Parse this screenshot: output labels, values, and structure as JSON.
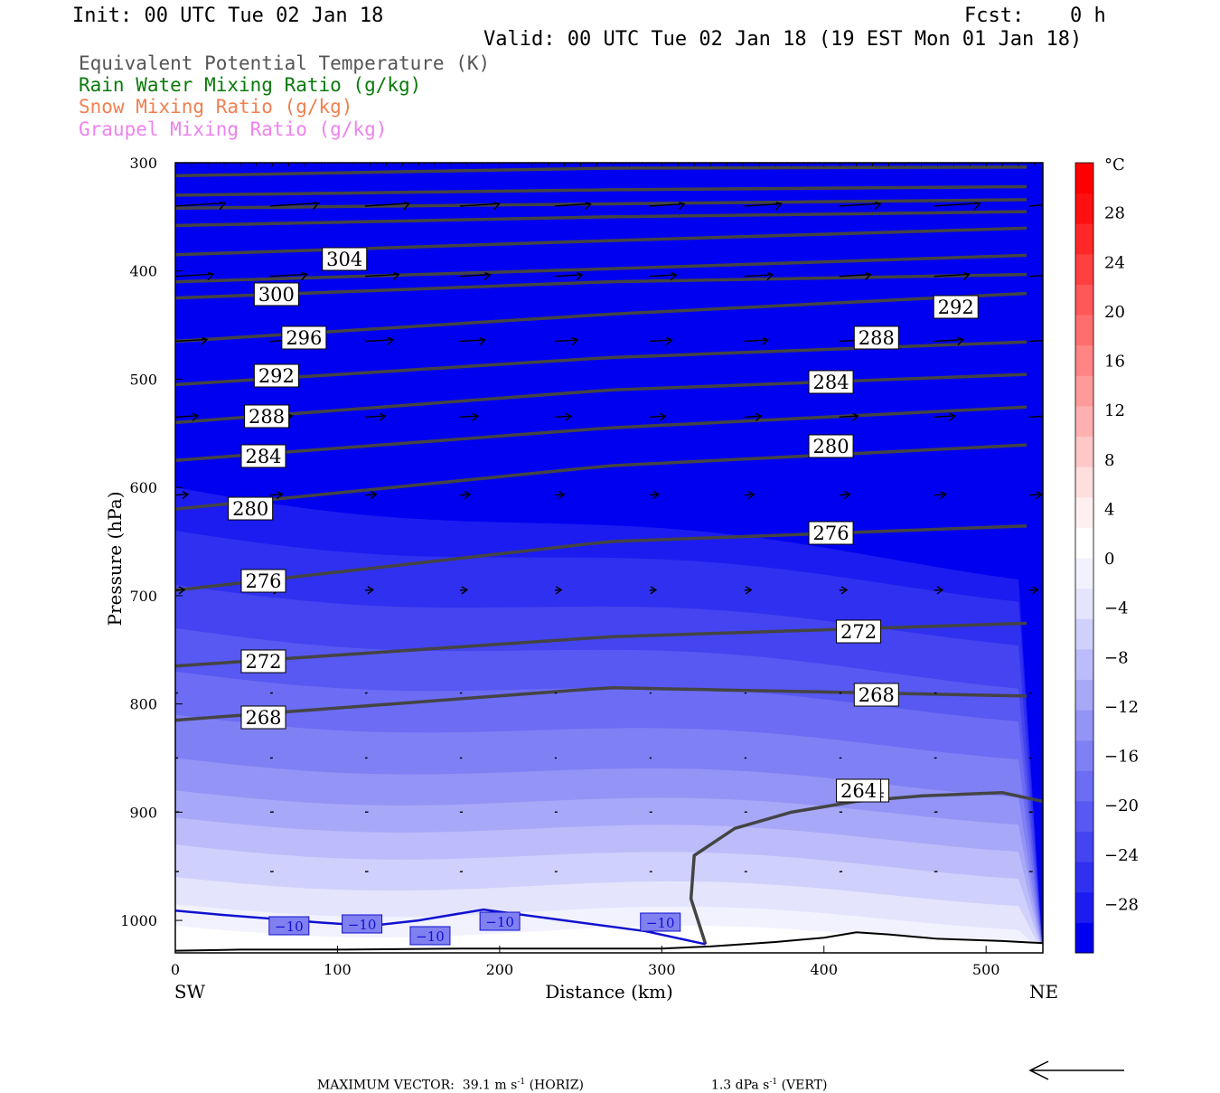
{
  "header": {
    "init": "Init: 00 UTC Tue 02 Jan 18",
    "fcst_label": "Fcst:",
    "fcst_value": "0 h",
    "valid": "Valid: 00 UTC Tue 02 Jan 18 (19 EST Mon 01 Jan 18)"
  },
  "legend": [
    {
      "label": "Equivalent Potential Temperature (K)",
      "color": "#555555"
    },
    {
      "label": "Rain Water Mixing Ratio (g/kg)",
      "color": "#0a7a0a"
    },
    {
      "label": "Snow Mixing Ratio (g/kg)",
      "color": "#f08050"
    },
    {
      "label": "Graupel Mixing Ratio (g/kg)",
      "color": "#ee82ee"
    }
  ],
  "chart_data": {
    "type": "contour",
    "xlabel": "Distance (km)",
    "ylabel": "Pressure (hPa)",
    "x_ticks": [
      "0",
      "100",
      "200",
      "300",
      "400",
      "500"
    ],
    "y_ticks": [
      "300",
      "400",
      "500",
      "600",
      "700",
      "800",
      "900",
      "1000"
    ],
    "xlim": [
      0,
      535
    ],
    "ylim": [
      1030,
      300
    ],
    "x_end_labels": {
      "left": "SW",
      "right": "NE"
    },
    "colorbar": {
      "unit": "°C",
      "ticks": [
        "28",
        "24",
        "20",
        "16",
        "12",
        "8",
        "4",
        "0",
        "−4",
        "−8",
        "−12",
        "−16",
        "−20",
        "−24",
        "−28"
      ],
      "range": [
        -32,
        32
      ],
      "colors_cold": [
        "#0000f0",
        "#1c1cf0",
        "#3030f0",
        "#4444f0",
        "#5858f2",
        "#6c6cf4",
        "#8080f5",
        "#9494f6",
        "#a8a8f8",
        "#bcbcfa",
        "#d0d0fc",
        "#e4e4fd",
        "#f2f2ff",
        "#ffffff"
      ],
      "colors_warm": [
        "#fff0f0",
        "#ffdede",
        "#ffc8c8",
        "#ffb0b0",
        "#ff9a9a",
        "#ff8484",
        "#ff6e6e",
        "#ff5858",
        "#ff4040",
        "#ff2828",
        "#ff1010",
        "#ff0000"
      ]
    },
    "theta_e_contour_labels": [
      "304",
      "300",
      "296",
      "292",
      "288",
      "284",
      "280",
      "276",
      "272",
      "268",
      "264",
      "292",
      "288",
      "284",
      "280",
      "276",
      "272",
      "268",
      "264"
    ],
    "temperature_contour_labels": [
      "−10",
      "−10",
      "−10",
      "−10",
      "−10"
    ]
  },
  "footer": {
    "max_vector_label": "MAXIMUM VECTOR:",
    "horiz_value": "39.1 m s",
    "horiz_unit": "(HORIZ)",
    "vert_value": "1.3 dPa s",
    "vert_unit": "(VERT)",
    "exponent": "-1"
  }
}
